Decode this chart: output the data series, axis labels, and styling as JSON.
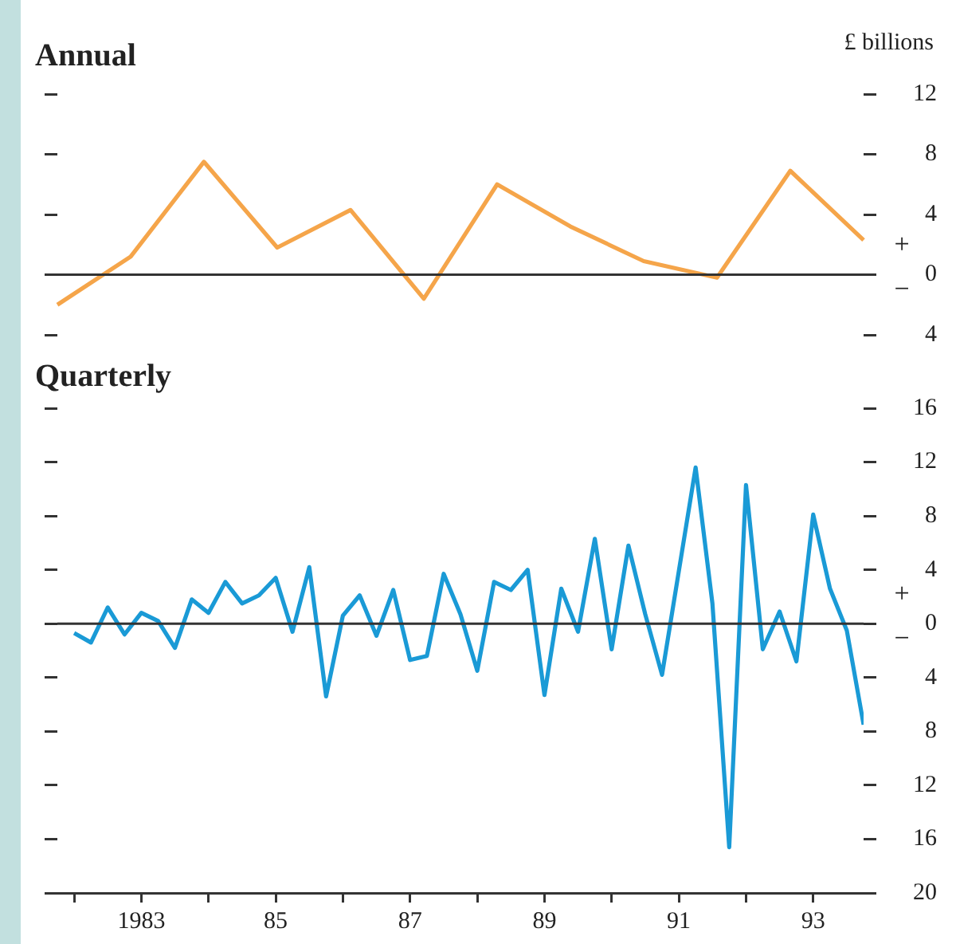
{
  "chart_data": [
    {
      "type": "line",
      "title": "Annual",
      "ylabel": "£ billions",
      "categories": [
        null,
        null,
        null,
        null,
        null,
        null,
        null,
        null,
        null,
        null,
        null,
        null
      ],
      "series": [
        {
          "color": "#f5a54a",
          "values": [
            -2.0,
            1.2,
            7.5,
            1.8,
            4.3,
            -1.6,
            6.0,
            3.2,
            0.9,
            -0.2,
            6.9,
            2.3
          ]
        }
      ],
      "ylim": [
        -4,
        12
      ],
      "yticks": [
        {
          "value": -4,
          "label": "4"
        },
        0,
        4,
        8,
        12
      ],
      "tick_labels": "y",
      "ref_lines": [
        {
          "axis": "y",
          "value": 0,
          "color": "#333333"
        }
      ],
      "annotations": [
        "+",
        "−"
      ],
      "grid": false,
      "legend": false,
      "marker": "none"
    },
    {
      "type": "line",
      "title": "Quarterly",
      "x": [
        1982,
        1982.25,
        1982.5,
        1982.75,
        1983,
        1983.25,
        1983.5,
        1983.75,
        1984,
        1984.25,
        1984.5,
        1984.75,
        1985,
        1985.25,
        1985.5,
        1985.75,
        1986,
        1986.25,
        1986.5,
        1986.75,
        1987,
        1987.25,
        1987.5,
        1987.75,
        1988,
        1988.25,
        1988.5,
        1988.75,
        1989,
        1989.25,
        1989.5,
        1989.75,
        1990,
        1990.25,
        1990.5,
        1990.75,
        1991,
        1991.25,
        1991.5,
        1991.75,
        1992,
        1992.25,
        1992.5,
        1992.75,
        1993,
        1993.25,
        1993.5,
        1993.75
      ],
      "series": [
        {
          "color": "#1a9ad6",
          "values": [
            -0.7,
            -1.4,
            1.2,
            -0.8,
            0.8,
            0.2,
            -1.8,
            1.8,
            0.8,
            3.1,
            1.5,
            2.1,
            3.4,
            -0.6,
            4.2,
            -5.4,
            0.6,
            2.1,
            -0.9,
            2.5,
            -2.7,
            -2.4,
            3.7,
            0.7,
            -3.5,
            3.1,
            2.5,
            4.0,
            -5.3,
            2.6,
            -0.6,
            6.3,
            -1.9,
            5.8,
            0.7,
            -3.8,
            3.9,
            11.6,
            1.5,
            -16.6,
            10.3,
            -1.9,
            0.9,
            -2.8,
            8.1,
            2.6,
            -0.5,
            -7.5
          ]
        }
      ],
      "xlim": [
        1981.75,
        1993.75
      ],
      "xticks": [
        {
          "value": 1982,
          "label": null
        },
        1983,
        {
          "value": 1984,
          "label": null
        },
        {
          "value": 1985,
          "label": "85"
        },
        {
          "value": 1986,
          "label": null
        },
        {
          "value": 1987,
          "label": "87"
        },
        {
          "value": 1988,
          "label": null
        },
        {
          "value": 1989,
          "label": "89"
        },
        {
          "value": 1990,
          "label": null
        },
        {
          "value": 1991,
          "label": "91"
        },
        {
          "value": 1992,
          "label": null
        },
        {
          "value": 1993,
          "label": "93"
        }
      ],
      "ylim": [
        -20,
        16
      ],
      "yticks": [
        {
          "value": -20,
          "label": "20"
        },
        {
          "value": -16,
          "label": "16"
        },
        {
          "value": -12,
          "label": "12"
        },
        {
          "value": -8,
          "label": "8"
        },
        {
          "value": -4,
          "label": "4"
        },
        0,
        4,
        8,
        12,
        16
      ],
      "ref_lines": [
        {
          "axis": "y",
          "value": 0,
          "color": "#333333"
        }
      ],
      "annotations": [
        "+",
        "−"
      ],
      "grid": false,
      "legend": false,
      "marker": "none"
    }
  ]
}
